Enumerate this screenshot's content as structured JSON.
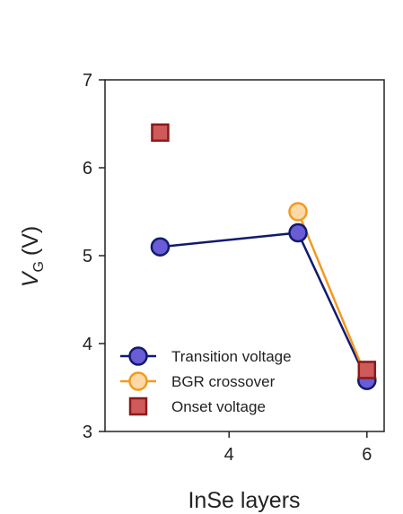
{
  "chart_data": {
    "type": "scatter",
    "xlabel": "InSe layers",
    "ylabel_main": "V",
    "ylabel_sub": "G",
    "ylabel_unit": "(V)",
    "xlim": [
      2.2,
      6.25
    ],
    "ylim": [
      3,
      7
    ],
    "x_ticks": [
      4,
      6
    ],
    "x_tick_labels": [
      "4",
      "6"
    ],
    "y_ticks": [
      3,
      4,
      5,
      6,
      7
    ],
    "y_tick_labels": [
      "3",
      "4",
      "5",
      "6",
      "7"
    ],
    "grid": false,
    "legend_position": "bottom-left",
    "series": [
      {
        "name": "Transition voltage",
        "marker": "circle",
        "connected": true,
        "line_color": "#101a6e",
        "fill_color": "#6a5bd6",
        "edge_color": "#101a6e",
        "x": [
          3,
          5,
          6
        ],
        "y": [
          5.1,
          5.26,
          3.58
        ]
      },
      {
        "name": "BGR crossover",
        "marker": "circle",
        "connected": true,
        "line_color": "#f29a1f",
        "fill_color": "#fcd9a6",
        "edge_color": "#f29a1f",
        "x": [
          5,
          6
        ],
        "y": [
          5.5,
          3.6
        ]
      },
      {
        "name": "Onset voltage",
        "marker": "square",
        "connected": false,
        "line_color": "#8b1a1a",
        "fill_color": "#cf5a5a",
        "edge_color": "#8b1a1a",
        "x": [
          3,
          6
        ],
        "y": [
          6.4,
          3.7
        ]
      }
    ]
  }
}
